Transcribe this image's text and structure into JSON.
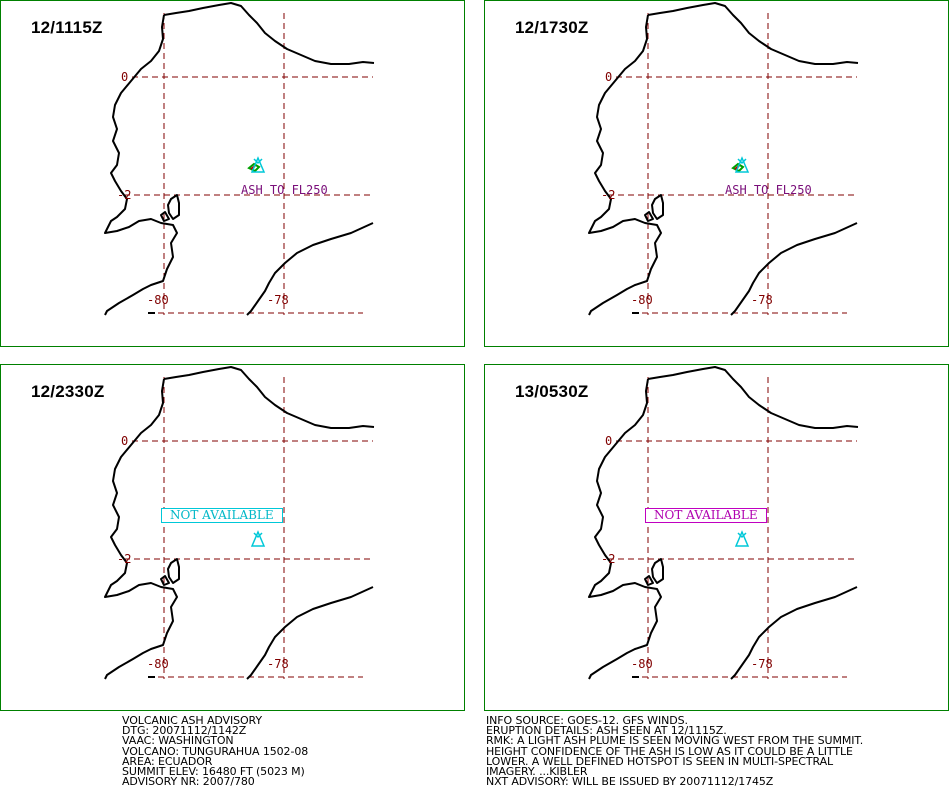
{
  "panels": [
    {
      "time": "12/1115Z",
      "label_text": "ASH TO FL250",
      "status": "",
      "status_color": ""
    },
    {
      "time": "12/1730Z",
      "label_text": "ASH TO FL250",
      "status": "",
      "status_color": ""
    },
    {
      "time": "12/2330Z",
      "label_text": "",
      "status": "NOT AVAILABLE",
      "status_color": "#00c8d8"
    },
    {
      "time": "13/0530Z",
      "label_text": "",
      "status": "NOT AVAILABLE",
      "status_color": "#c000c0"
    }
  ],
  "grid_labels": {
    "lat_0": "0",
    "lat_m2": "-2",
    "lon_m80": "-80",
    "lon_m78": "-78"
  },
  "volcano_icon": "volcano-triangle-icon",
  "colors": {
    "frame": "#008000",
    "grid": "#800000",
    "volcano": "#00c8d8",
    "ash_label": "#7a0f7a"
  },
  "advisory_left": [
    "VOLCANIC ASH ADVISORY",
    "DTG: 20071112/1142Z",
    "VAAC: WASHINGTON",
    "VOLCANO: TUNGURAHUA 1502-08",
    "AREA: ECUADOR",
    "SUMMIT ELEV: 16480 FT (5023 M)",
    "ADVISORY NR: 2007/780"
  ],
  "advisory_right": [
    "INFO SOURCE: GOES-12. GFS WINDS.",
    "ERUPTION DETAILS: ASH SEEN AT 12/1115Z.",
    "RMK: A LIGHT ASH PLUME IS SEEN MOVING WEST FROM THE SUMMIT.",
    "HEIGHT CONFIDENCE OF THE ASH IS LOW AS IT COULD BE A LITTLE",
    "LOWER. A WELL DEFINED HOTSPOT IS SEEN IN MULTI-SPECTRAL",
    "IMAGERY. ...KIBLER",
    "NXT ADVISORY: WILL BE ISSUED BY 20071112/1745Z"
  ]
}
